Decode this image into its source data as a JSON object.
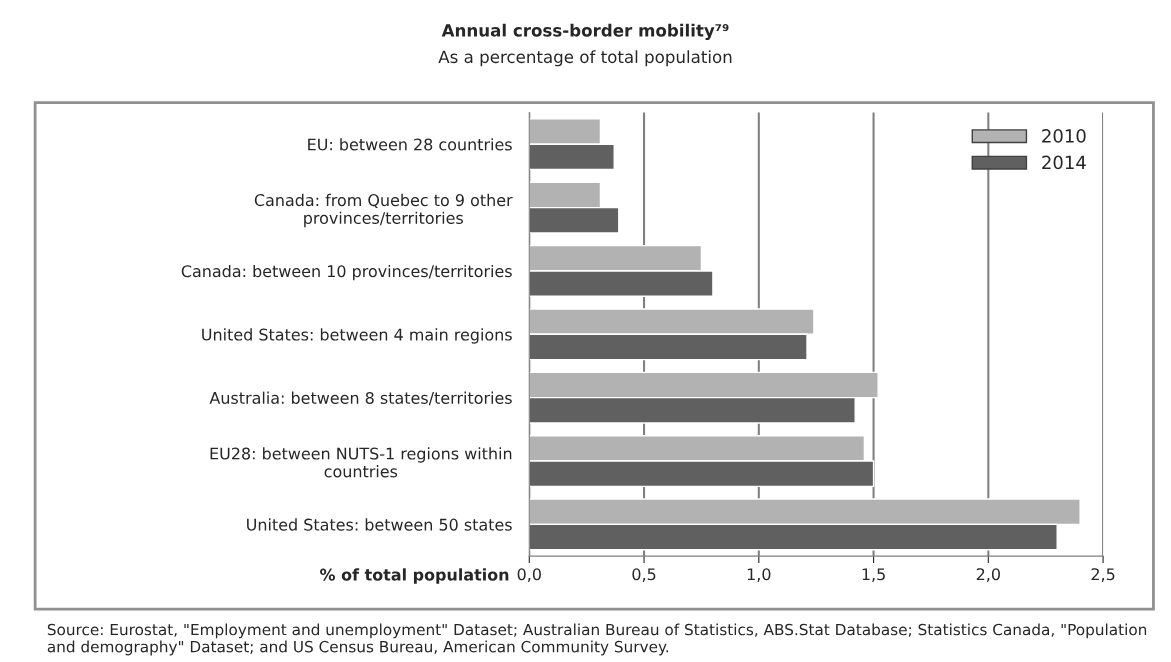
{
  "chart_data": {
    "type": "bar",
    "orientation": "horizontal",
    "title": "Annual cross-border mobility⁷⁹",
    "subtitle": "As a percentage of total population",
    "xlabel": "% of total population",
    "categories": [
      "EU: between 28 countries",
      "Canada: from Quebec to 9 other\nprovinces/territories",
      "Canada: between 10 provinces/territories",
      "United States: between 4 main regions",
      "Australia: between 8 states/territories",
      "EU28: between NUTS-1 regions within\ncountries",
      "United States: between 50 states"
    ],
    "series": [
      {
        "name": "2010",
        "color": "#b2b2b2",
        "values": [
          0.31,
          0.31,
          0.75,
          1.24,
          1.52,
          1.46,
          2.4
        ]
      },
      {
        "name": "2014",
        "color": "#606060",
        "values": [
          0.37,
          0.39,
          0.8,
          1.21,
          1.42,
          1.5,
          2.3
        ]
      }
    ],
    "xlim": [
      0,
      2.5
    ],
    "xticks": [
      {
        "value": 0,
        "label": "0,0"
      },
      {
        "value": 0.5,
        "label": "0,5"
      },
      {
        "value": 1.0,
        "label": "1,0"
      },
      {
        "value": 1.5,
        "label": "1,5"
      },
      {
        "value": 2.0,
        "label": "2,0"
      },
      {
        "value": 2.5,
        "label": "2,5"
      }
    ],
    "grid": "x",
    "legend": "top right",
    "annotations": [
      "Source: Eurostat, \"Employment and unemployment\" Dataset; Australian Bureau of Statistics, ABS.Stat Database; Statistics Canada, \"Population and demography\" Dataset; and US Census Bureau, American Community Survey."
    ]
  }
}
